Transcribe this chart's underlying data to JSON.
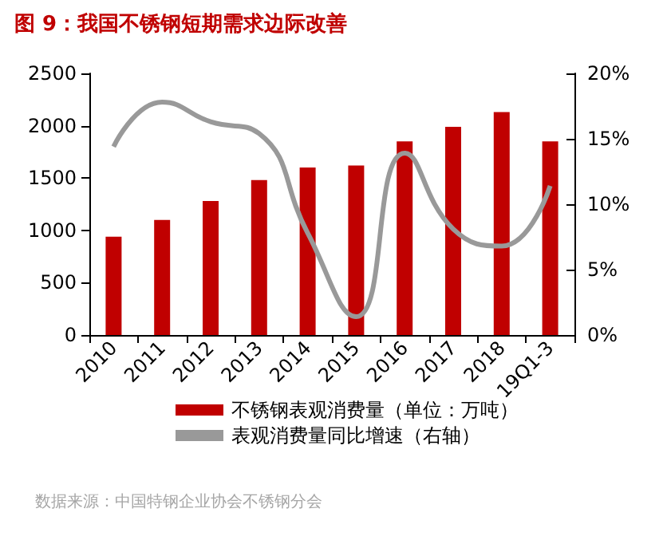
{
  "chart_data": {
    "type": "bar",
    "title": "图 9：我国不锈钢短期需求边际改善",
    "categories": [
      "2010",
      "2011",
      "2012",
      "2013",
      "2014",
      "2015",
      "2016",
      "2017",
      "2018",
      "19Q1-3"
    ],
    "series": [
      {
        "name": "不锈钢表观消费量（单位：万吨）",
        "color": "#c00000",
        "values": [
          940,
          1100,
          1280,
          1480,
          1600,
          1620,
          1850,
          1990,
          2130,
          1850
        ]
      },
      {
        "name": "表观消费量同比增速（右轴）",
        "type": "line",
        "axis": "y2",
        "color": "#999999",
        "marker": "none",
        "values": [
          14.4,
          17.8,
          16.3,
          15.4,
          7.8,
          1.4,
          13.9,
          8.1,
          6.8,
          11.4
        ]
      }
    ],
    "ylim": [
      0,
      2500
    ],
    "yticks": [
      0,
      500,
      1000,
      1500,
      2000,
      2500
    ],
    "y2lim": [
      0,
      20
    ],
    "y2ticks": [
      {
        "value": 0,
        "label": "0%"
      },
      {
        "value": 5,
        "label": "5%"
      },
      {
        "value": 10,
        "label": "10%"
      },
      {
        "value": 15,
        "label": "15%"
      },
      {
        "value": 20,
        "label": "20%"
      }
    ],
    "legend": "bottom",
    "grid": false,
    "annotations": [
      "数据来源：中国特钢企业协会不锈钢分会"
    ]
  }
}
